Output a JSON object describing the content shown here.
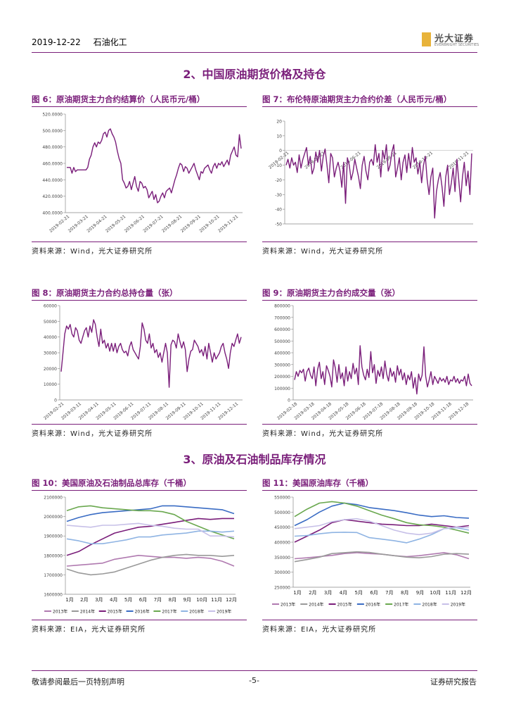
{
  "header": {
    "date": "2019-12-22",
    "industry": "石油化工"
  },
  "logo": {
    "cn": "光大证券",
    "en": "EVERBRIGHT SECURITIES",
    "accent": "#e8b33a"
  },
  "colors": {
    "purple": "#7a1e7a"
  },
  "section2": "2、中国原油期货价格及持仓",
  "section3": "3、原油及石油制品库存情况",
  "footer": {
    "left": "敬请参阅最后一页特别声明",
    "center": "-5-",
    "right": "证券研究报告"
  },
  "sources": {
    "wind": "资料来源：Wind，光大证券研究所",
    "eia": "资料来源：EIA，光大证券研究所"
  },
  "chart_data": [
    {
      "id": "fig6",
      "type": "line",
      "title": "图 6：原油期货主力合约结算价（人民币元/桶）",
      "ylim": [
        400,
        520
      ],
      "yticks": [
        "400.0000",
        "420.0000",
        "440.0000",
        "460.0000",
        "480.0000",
        "500.0000",
        "520.0000"
      ],
      "xticks": [
        "2019-02-21",
        "2019-03-21",
        "2019-04-21",
        "2019-05-21",
        "2019-06-21",
        "2019-07-21",
        "2019-08-21",
        "2019-09-21",
        "2019-10-21",
        "2019-11-21"
      ],
      "series": [
        {
          "name": "结算价",
          "values": [
            455,
            455,
            455,
            448,
            455,
            450,
            452,
            452,
            452,
            452,
            452,
            452,
            455,
            465,
            470,
            480,
            485,
            480,
            486,
            484,
            488,
            496,
            498,
            492,
            500,
            502,
            496,
            492,
            486,
            475,
            466,
            460,
            440,
            436,
            430,
            432,
            438,
            428,
            436,
            444,
            432,
            426,
            438,
            436,
            430,
            432,
            428,
            418,
            422,
            426,
            416,
            422,
            412,
            414,
            420,
            424,
            418,
            426,
            428,
            430,
            424,
            432,
            440,
            446,
            454,
            460,
            458,
            450,
            456,
            454,
            448,
            452,
            456,
            460,
            452,
            446,
            440,
            450,
            448,
            454,
            456,
            458,
            452,
            448,
            456,
            460,
            454,
            460,
            458,
            462,
            456,
            460,
            464,
            458,
            470,
            475,
            480,
            470,
            468,
            495,
            478
          ]
        }
      ]
    },
    {
      "id": "fig7",
      "type": "line",
      "title": "图 7：布伦特原油期货主力合约价差（人民币元/桶）",
      "ylim": [
        -50,
        20
      ],
      "yticks": [
        "20",
        "10",
        "0",
        "-10",
        "-20",
        "-30",
        "-40",
        "-50"
      ],
      "xticks": [
        "2019-02-21",
        "2019-04-21",
        "2019-06-21",
        "2019-08-21",
        "2019-10-21",
        "2019-11-21"
      ],
      "series": [
        {
          "name": "价差",
          "values": [
            -10,
            -6,
            -12,
            -5,
            -10,
            -8,
            -15,
            -3,
            -12,
            -6,
            -2,
            2,
            -10,
            -4,
            -16,
            -12,
            -1,
            -8,
            0,
            -14,
            -4,
            1,
            -10,
            -22,
            -2,
            -5,
            -18,
            -12,
            -8,
            -14,
            -25,
            -8,
            -36,
            -5,
            -10,
            -20,
            -15,
            -6,
            -12,
            -18,
            -26,
            -10,
            -4,
            -14,
            -20,
            -8,
            -6,
            -10,
            4,
            -8,
            -2,
            -18,
            0,
            -6,
            4,
            -14,
            -10,
            -1,
            4,
            -18,
            -12,
            -5,
            -20,
            -8,
            -3,
            -15,
            -2,
            -12,
            2,
            -8,
            -5,
            -16,
            -8,
            -22,
            -10,
            -4,
            -20,
            -30,
            -18,
            -12,
            -46,
            -28,
            -20,
            -15,
            -25,
            -38,
            -18,
            -10,
            -30,
            -22,
            -12,
            -28,
            -6,
            -20,
            -35,
            -18,
            -8,
            -24,
            -14,
            -30,
            -2
          ]
        }
      ]
    },
    {
      "id": "fig8",
      "type": "line",
      "title": "图 8：原油期货主力合约总持仓量（张）",
      "ylim": [
        0,
        60000
      ],
      "yticks": [
        "0",
        "10000",
        "20000",
        "30000",
        "40000",
        "50000",
        "60000"
      ],
      "xticks": [
        "2019-02-21",
        "2019-03-11",
        "2019-04-11",
        "2019-05-11",
        "2019-06-11",
        "2019-07-11",
        "2019-08-11",
        "2019-09-11",
        "2019-10-11",
        "2019-11-11",
        "2019-12-11"
      ],
      "series": [
        {
          "name": "持仓量",
          "values": [
            18000,
            30000,
            42000,
            47000,
            45000,
            48000,
            42000,
            40000,
            46000,
            44000,
            38000,
            36000,
            40000,
            44000,
            46000,
            40000,
            47000,
            43000,
            51000,
            48000,
            40000,
            34000,
            45000,
            36000,
            38000,
            33000,
            36000,
            31000,
            36000,
            31000,
            36000,
            30000,
            34000,
            36000,
            32000,
            30000,
            31000,
            28000,
            34000,
            37000,
            32000,
            30000,
            28000,
            26000,
            34000,
            49000,
            45000,
            38000,
            36000,
            42000,
            33000,
            36000,
            30000,
            32000,
            27000,
            30000,
            24000,
            30000,
            36000,
            30000,
            8000,
            35000,
            38000,
            37000,
            33000,
            42000,
            37000,
            33000,
            37000,
            32000,
            18000,
            26000,
            31000,
            32000,
            38000,
            36000,
            34000,
            30000,
            32000,
            28000,
            34000,
            26000,
            36000,
            30000,
            24000,
            30000,
            26000,
            28000,
            30000,
            34000,
            36000,
            30000,
            26000,
            20000,
            30000,
            36000,
            34000,
            38000,
            42000,
            36000,
            40000
          ]
        }
      ]
    },
    {
      "id": "fig9",
      "type": "line",
      "title": "图 9：原油期货主力合约成交量（张）",
      "ylim": [
        0,
        800000
      ],
      "yticks": [
        "0",
        "100000",
        "200000",
        "300000",
        "400000",
        "500000",
        "600000",
        "700000",
        "800000"
      ],
      "xticks": [
        "2019-02-18",
        "2019-03-18",
        "2019-04-18",
        "2019-05-18",
        "2019-06-18",
        "2019-07-18",
        "2019-08-18",
        "2019-09-18",
        "2019-10-18",
        "2019-11-18",
        "2019-12-18"
      ],
      "series": [
        {
          "name": "成交量",
          "values": [
            170000,
            240000,
            200000,
            250000,
            230000,
            260000,
            160000,
            240000,
            270000,
            210000,
            180000,
            280000,
            120000,
            260000,
            320000,
            180000,
            240000,
            130000,
            290000,
            250000,
            200000,
            110000,
            340000,
            270000,
            150000,
            300000,
            180000,
            230000,
            120000,
            280000,
            160000,
            240000,
            180000,
            310000,
            220000,
            270000,
            130000,
            460000,
            280000,
            210000,
            170000,
            260000,
            190000,
            410000,
            230000,
            300000,
            140000,
            250000,
            200000,
            280000,
            180000,
            330000,
            220000,
            160000,
            270000,
            200000,
            240000,
            150000,
            290000,
            210000,
            260000,
            170000,
            230000,
            130000,
            210000,
            170000,
            240000,
            100000,
            190000,
            50000,
            220000,
            160000,
            210000,
            450000,
            200000,
            110000,
            170000,
            240000,
            130000,
            200000,
            170000,
            140000,
            190000,
            160000,
            180000,
            150000,
            200000,
            130000,
            170000,
            160000,
            200000,
            150000,
            180000,
            140000,
            170000,
            160000,
            200000,
            120000,
            220000,
            140000,
            120000
          ]
        }
      ]
    },
    {
      "id": "fig10",
      "type": "line",
      "title": "图 10：美国原油及石油制品总库存（千桶）",
      "ylim": [
        1600000,
        2100000
      ],
      "yticks": [
        "1600000",
        "1700000",
        "1800000",
        "1900000",
        "2000000",
        "2100000"
      ],
      "xticks": [
        "1月",
        "2月",
        "3月",
        "4月",
        "5月",
        "6月",
        "7月",
        "8月",
        "9月",
        "10月",
        "11月",
        "12月"
      ],
      "legend": [
        "2013年",
        "2014年",
        "2015年",
        "2016年",
        "2017年",
        "2018年",
        "2019年"
      ],
      "series": [
        {
          "name": "2013年",
          "color": "#b07ab0",
          "values": [
            1745000,
            1750000,
            1755000,
            1760000,
            1780000,
            1790000,
            1800000,
            1795000,
            1790000,
            1790000,
            1785000,
            1790000,
            1785000,
            1770000,
            1745000
          ]
        },
        {
          "name": "2014年",
          "color": "#999999",
          "values": [
            1730000,
            1710000,
            1700000,
            1705000,
            1715000,
            1735000,
            1755000,
            1775000,
            1790000,
            1800000,
            1805000,
            1800000,
            1800000,
            1795000,
            1800000
          ]
        },
        {
          "name": "2015年",
          "color": "#7a1e7a",
          "values": [
            1800000,
            1820000,
            1855000,
            1885000,
            1915000,
            1930000,
            1945000,
            1950000,
            1960000,
            1970000,
            1980000,
            1990000,
            1985000,
            1990000,
            1990000
          ]
        },
        {
          "name": "2016年",
          "color": "#3a6cc4",
          "values": [
            1975000,
            1995000,
            2010000,
            2020000,
            2025000,
            2030000,
            2035000,
            2040000,
            2055000,
            2055000,
            2050000,
            2045000,
            2040000,
            2035000,
            2015000
          ]
        },
        {
          "name": "2017年",
          "color": "#6aa84f",
          "values": [
            2030000,
            2050000,
            2055000,
            2045000,
            2040000,
            2035000,
            2030000,
            2030000,
            2025000,
            2010000,
            1975000,
            1950000,
            1925000,
            1905000,
            1885000
          ]
        },
        {
          "name": "2018年",
          "color": "#8fb4e3",
          "values": [
            1885000,
            1875000,
            1860000,
            1860000,
            1870000,
            1880000,
            1895000,
            1895000,
            1905000,
            1910000,
            1915000,
            1925000,
            1925000,
            1920000,
            1925000
          ]
        },
        {
          "name": "2019年",
          "color": "#c7c0e8",
          "values": [
            1955000,
            1950000,
            1945000,
            1955000,
            1955000,
            1960000,
            1965000,
            1955000,
            1950000,
            1940000,
            1935000,
            1935000,
            1900000,
            1900000,
            1895000
          ]
        }
      ]
    },
    {
      "id": "fig11",
      "type": "line",
      "title": "图 11：美国原油库存（千桶）",
      "ylim": [
        250000,
        550000
      ],
      "yticks": [
        "250000",
        "300000",
        "350000",
        "400000",
        "450000",
        "500000",
        "550000"
      ],
      "xticks": [
        "1月",
        "2月",
        "3月",
        "4月",
        "5月",
        "6月",
        "7月",
        "8月",
        "9月",
        "10月",
        "11月",
        "12月"
      ],
      "legend": [
        "2013年",
        "2014年",
        "2015年",
        "2016年",
        "2017年",
        "2018年",
        "2019年"
      ],
      "series": [
        {
          "name": "2013年",
          "color": "#b07ab0",
          "values": [
            345000,
            348000,
            352000,
            356000,
            362000,
            365000,
            362000,
            360000,
            355000,
            352000,
            355000,
            360000,
            365000,
            358000,
            345000
          ]
        },
        {
          "name": "2014年",
          "color": "#999999",
          "values": [
            335000,
            342000,
            350000,
            362000,
            365000,
            368000,
            366000,
            360000,
            355000,
            350000,
            348000,
            352000,
            360000,
            362000,
            360000
          ]
        },
        {
          "name": "2015年",
          "color": "#7a1e7a",
          "values": [
            400000,
            420000,
            440000,
            465000,
            475000,
            470000,
            465000,
            460000,
            458000,
            455000,
            455000,
            460000,
            455000,
            450000,
            455000
          ]
        },
        {
          "name": "2016年",
          "color": "#3a6cc4",
          "values": [
            455000,
            475000,
            500000,
            520000,
            530000,
            525000,
            515000,
            510000,
            505000,
            498000,
            490000,
            485000,
            488000,
            482000,
            480000
          ]
        },
        {
          "name": "2017年",
          "color": "#6aa84f",
          "values": [
            485000,
            510000,
            530000,
            535000,
            530000,
            520000,
            505000,
            490000,
            478000,
            465000,
            458000,
            455000,
            450000,
            440000,
            430000
          ]
        },
        {
          "name": "2018年",
          "color": "#8fb4e3",
          "values": [
            420000,
            422000,
            428000,
            432000,
            433000,
            432000,
            415000,
            410000,
            405000,
            398000,
            410000,
            425000,
            445000,
            448000,
            440000
          ]
        },
        {
          "name": "2019年",
          "color": "#c7c0e8",
          "values": [
            445000,
            450000,
            455000,
            468000,
            475000,
            478000,
            470000,
            455000,
            440000,
            430000,
            425000,
            430000,
            445000,
            450000,
            448000
          ]
        }
      ]
    }
  ]
}
